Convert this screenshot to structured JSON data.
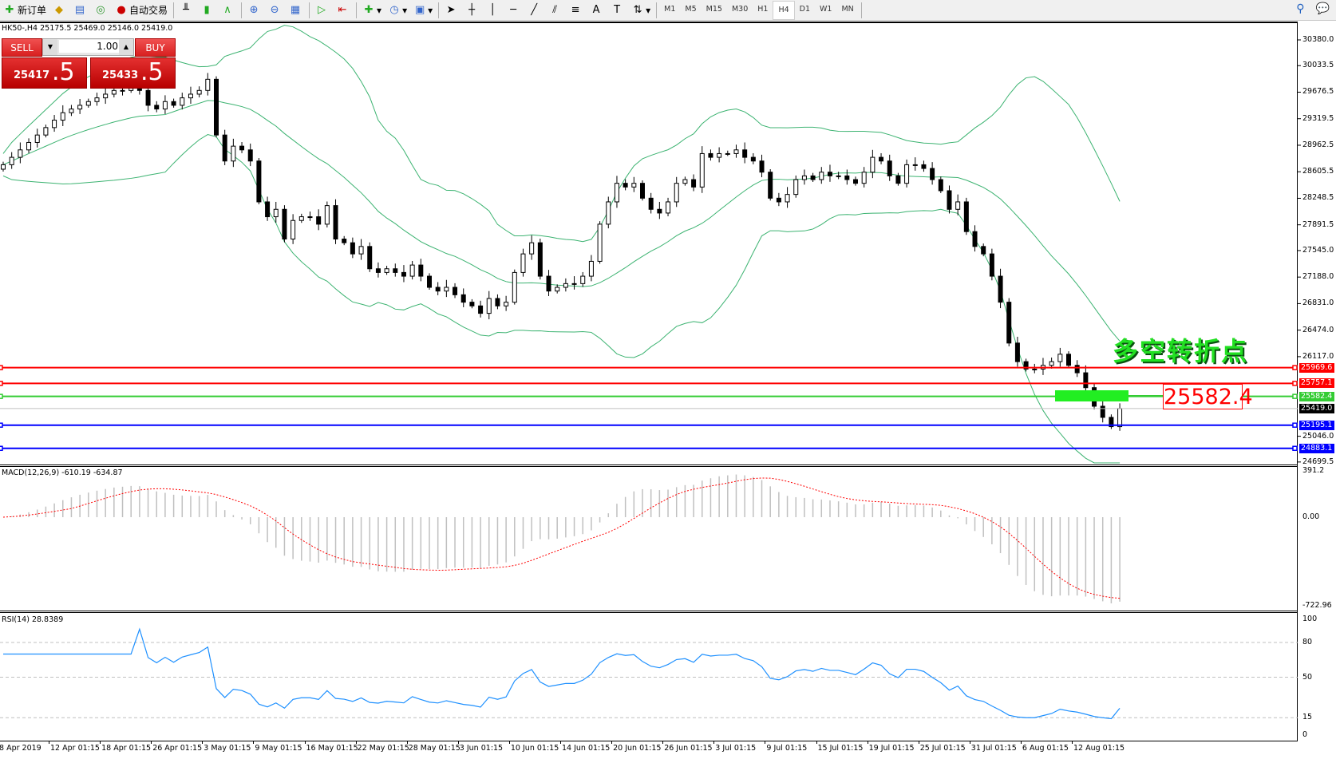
{
  "toolbar": {
    "new_order": "新订单",
    "auto_trading": "自动交易",
    "timeframes": [
      "M1",
      "M5",
      "M15",
      "M30",
      "H1",
      "H4",
      "D1",
      "W1",
      "MN"
    ],
    "active_timeframe": "H4"
  },
  "chart_header": "HK50-,H4  25175.5 25469.0 25146.0 25419.0",
  "trade_panel": {
    "sell_label": "SELL",
    "buy_label": "BUY",
    "lot_value": "1.00",
    "sell_price_main": "25417",
    "sell_price_frac": ".5",
    "buy_price_main": "25433",
    "buy_price_frac": ".5"
  },
  "price_axis": [
    "30380.0",
    "30033.5",
    "29676.5",
    "29319.5",
    "28962.5",
    "28605.5",
    "28248.5",
    "27891.5",
    "27545.0",
    "27188.0",
    "26831.0",
    "26474.0",
    "26117.0",
    "25046.0",
    "24699.5"
  ],
  "levels": [
    {
      "price": "25969.6",
      "color": "#ff0000"
    },
    {
      "price": "25757.1",
      "color": "#ff0000"
    },
    {
      "price": "25582.4",
      "color": "#33cc33"
    },
    {
      "price": "25419.0",
      "color": "#000000"
    },
    {
      "price": "25195.1",
      "color": "#0000ff"
    },
    {
      "price": "24883.1",
      "color": "#0000ff"
    }
  ],
  "annotation": {
    "title": "多空转折点",
    "level_label": "25582.4"
  },
  "macd": {
    "label": "MACD(12,26,9) -610.19 -634.87",
    "axis": [
      "391.2",
      "0.00",
      "-722.96"
    ]
  },
  "rsi": {
    "label": "RSI(14) 28.8389",
    "axis": [
      "100",
      "80",
      "50",
      "15",
      "0"
    ]
  },
  "date_axis": [
    "8 Apr 2019",
    "12 Apr 01:15",
    "18 Apr 01:15",
    "26 Apr 01:15",
    "3 May 01:15",
    "9 May 01:15",
    "16 May 01:15",
    "22 May 01:15",
    "28 May 01:15",
    "3 Jun 01:15",
    "10 Jun 01:15",
    "14 Jun 01:15",
    "20 Jun 01:15",
    "26 Jun 01:15",
    "3 Jul 01:15",
    "9 Jul 01:15",
    "15 Jul 01:15",
    "19 Jul 01:15",
    "25 Jul 01:15",
    "31 Jul 01:15",
    "6 Aug 01:15",
    "12 Aug 01:15"
  ],
  "colors": {
    "bollinger": "#3cb371",
    "macd_signal": "#ff0000",
    "rsi_line": "#1e90ff",
    "histogram": "#c0c0c0"
  },
  "chart_data": {
    "type": "candlestick",
    "symbol": "HK50-",
    "timeframe": "H4",
    "ylim": [
      24699.5,
      30380.0
    ],
    "closes": [
      28700,
      28800,
      28900,
      29000,
      29100,
      29200,
      29300,
      29400,
      29450,
      29500,
      29550,
      29600,
      29650,
      29700,
      29700,
      29750,
      29700,
      29500,
      29450,
      29550,
      29500,
      29600,
      29650,
      29700,
      29850,
      29100,
      28750,
      28950,
      28900,
      28750,
      28200,
      28000,
      28100,
      27700,
      27950,
      28000,
      28000,
      27900,
      28150,
      27700,
      27650,
      27500,
      27600,
      27300,
      27250,
      27300,
      27250,
      27200,
      27350,
      27200,
      27050,
      27000,
      27050,
      26950,
      26850,
      26800,
      26700,
      26900,
      26800,
      26850,
      27250,
      27500,
      27650,
      27200,
      27000,
      27050,
      27100,
      27100,
      27200,
      27400,
      27900,
      28200,
      28450,
      28400,
      28450,
      28250,
      28100,
      28050,
      28200,
      28450,
      28500,
      28400,
      28850,
      28800,
      28850,
      28850,
      28900,
      28800,
      28750,
      28600,
      28250,
      28200,
      28300,
      28500,
      28550,
      28500,
      28600,
      28550,
      28550,
      28500,
      28450,
      28600,
      28800,
      28750,
      28550,
      28450,
      28700,
      28700,
      28650,
      28500,
      28350,
      28100,
      28200,
      27800,
      27600,
      27500,
      27200,
      26850,
      26300,
      26050,
      25950,
      25950,
      26000,
      26050,
      26150,
      26000,
      25900,
      25700,
      25450,
      25300,
      25175,
      25419
    ]
  }
}
